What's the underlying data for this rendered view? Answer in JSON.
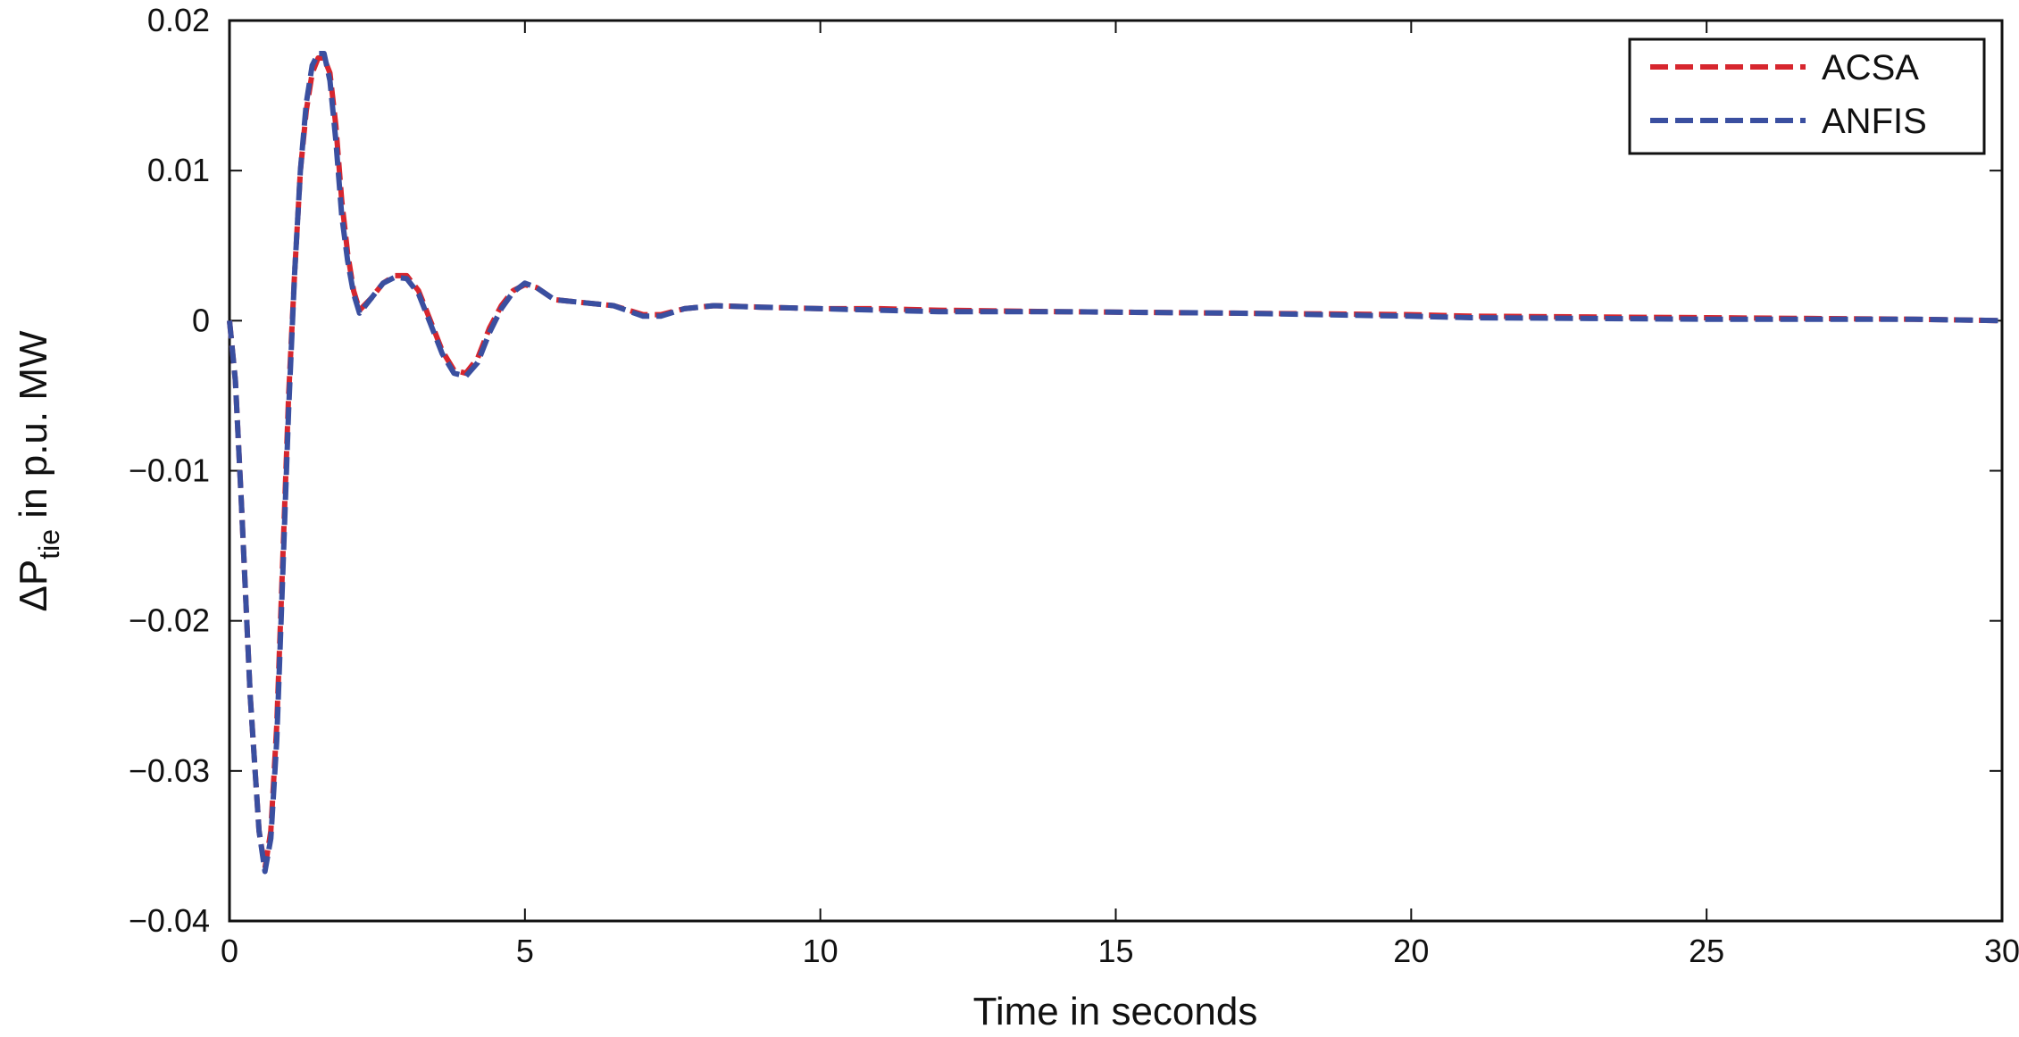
{
  "chart_data": {
    "type": "line",
    "title": "",
    "xlabel": "Time in seconds",
    "ylabel": {
      "prefix": "ΔP",
      "subscript": "tie",
      "suffix": " in p.u. MW"
    },
    "xlim": [
      0,
      30
    ],
    "ylim": [
      -0.04,
      0.02
    ],
    "xticks": [
      0,
      5,
      10,
      15,
      20,
      25,
      30
    ],
    "xtick_labels": [
      "0",
      "5",
      "10",
      "15",
      "20",
      "25",
      "30"
    ],
    "yticks": [
      -0.04,
      -0.03,
      -0.02,
      -0.01,
      0,
      0.01,
      0.02
    ],
    "ytick_labels": [
      "−0.04",
      "−0.03",
      "−0.02",
      "−0.01",
      "0",
      "0.01",
      "0.02"
    ],
    "grid": false,
    "legend_position": "top-right",
    "series": [
      {
        "name": "ACSA",
        "color": "#d7262e",
        "style": "dashed",
        "x": [
          0,
          0.1,
          0.2,
          0.35,
          0.5,
          0.6,
          0.7,
          0.8,
          0.9,
          1.0,
          1.1,
          1.2,
          1.3,
          1.4,
          1.5,
          1.6,
          1.7,
          1.8,
          1.9,
          2.0,
          2.1,
          2.2,
          2.4,
          2.6,
          2.8,
          3.0,
          3.2,
          3.4,
          3.6,
          3.8,
          4.0,
          4.2,
          4.4,
          4.6,
          4.8,
          5.0,
          5.2,
          5.5,
          6.0,
          6.5,
          7.0,
          7.3,
          7.7,
          8.2,
          9.0,
          10.0,
          11.0,
          12.0,
          14.0,
          17.0,
          20.0,
          21.0,
          25.0,
          28.5,
          30.0
        ],
        "y": [
          0,
          -0.004,
          -0.012,
          -0.025,
          -0.034,
          -0.0365,
          -0.034,
          -0.027,
          -0.016,
          -0.005,
          0.003,
          0.01,
          0.014,
          0.0165,
          0.0175,
          0.0175,
          0.0165,
          0.013,
          0.008,
          0.0045,
          0.002,
          0.0007,
          0.0015,
          0.0025,
          0.003,
          0.003,
          0.002,
          0,
          -0.002,
          -0.0033,
          -0.0035,
          -0.0025,
          -0.0005,
          0.001,
          0.002,
          0.0024,
          0.0022,
          0.0014,
          0.0012,
          0.001,
          0.0004,
          0.0004,
          0.0008,
          0.001,
          0.0009,
          0.0008,
          0.0008,
          0.0007,
          0.0006,
          0.0005,
          0.0004,
          0.0003,
          0.0002,
          0.0001,
          0
        ]
      },
      {
        "name": "ANFIS",
        "color": "#3a4fa0",
        "style": "dashed",
        "x": [
          0,
          0.1,
          0.2,
          0.35,
          0.5,
          0.6,
          0.7,
          0.8,
          0.9,
          1.0,
          1.1,
          1.2,
          1.3,
          1.4,
          1.5,
          1.6,
          1.7,
          1.8,
          1.9,
          2.0,
          2.1,
          2.2,
          2.4,
          2.6,
          2.8,
          3.0,
          3.2,
          3.4,
          3.6,
          3.8,
          4.0,
          4.2,
          4.4,
          4.6,
          4.8,
          5.0,
          5.2,
          5.5,
          6.0,
          6.5,
          7.0,
          7.3,
          7.7,
          8.2,
          9.0,
          10.0,
          11.0,
          12.0,
          14.0,
          17.0,
          20.0,
          21.0,
          25.0,
          28.5,
          30.0
        ],
        "y": [
          0,
          -0.004,
          -0.012,
          -0.025,
          -0.034,
          -0.0367,
          -0.0345,
          -0.028,
          -0.017,
          -0.006,
          0.003,
          0.01,
          0.0145,
          0.017,
          0.0178,
          0.0178,
          0.016,
          0.012,
          0.007,
          0.004,
          0.0018,
          0.0005,
          0.0015,
          0.0025,
          0.0029,
          0.0028,
          0.0018,
          -0.0002,
          -0.0022,
          -0.0035,
          -0.0037,
          -0.0028,
          -0.0008,
          0.0008,
          0.0019,
          0.0025,
          0.0022,
          0.0014,
          0.0012,
          0.001,
          0.0003,
          0.0003,
          0.0008,
          0.001,
          0.0009,
          0.0008,
          0.0007,
          0.0006,
          0.0006,
          0.0005,
          0.0003,
          0.0002,
          0.0001,
          0.0001,
          0
        ]
      }
    ]
  }
}
